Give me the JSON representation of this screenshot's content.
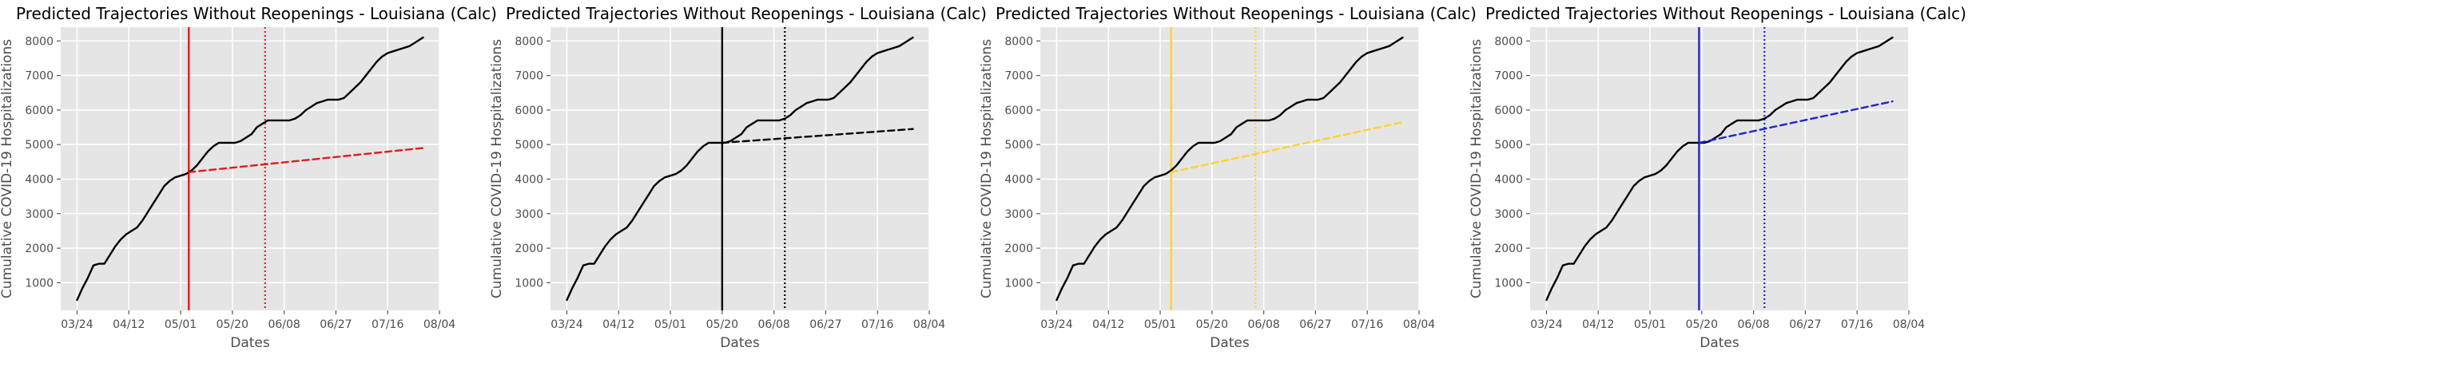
{
  "chart_data": [
    {
      "type": "line",
      "title": "Predicted Trajectories Without Reopenings - Louisiana (Calc)",
      "xlabel": "Dates",
      "ylabel": "Cumulative COVID-19 Hospitalizations",
      "xticks": [
        "03/24",
        "04/12",
        "05/01",
        "05/20",
        "06/08",
        "06/27",
        "07/16",
        "08/04"
      ],
      "yticks": [
        1000,
        2000,
        3000,
        4000,
        5000,
        6000,
        7000,
        8000
      ],
      "xlim": [
        "2020-03-18",
        "2020-08-04"
      ],
      "ylim": [
        200,
        8400
      ],
      "grid": true,
      "accent_color": "#e41a1c",
      "reopen_date": "2020-05-04",
      "dotted_line_date": "2020-06-01",
      "series": [
        {
          "line_style": "solid",
          "color": "#000000",
          "x": [
            "2020-03-24",
            "2020-03-26",
            "2020-03-28",
            "2020-03-30",
            "2020-04-01",
            "2020-04-03",
            "2020-04-05",
            "2020-04-07",
            "2020-04-09",
            "2020-04-11",
            "2020-04-13",
            "2020-04-15",
            "2020-04-17",
            "2020-04-19",
            "2020-04-21",
            "2020-04-23",
            "2020-04-25",
            "2020-04-27",
            "2020-04-29",
            "2020-05-01",
            "2020-05-03",
            "2020-05-05",
            "2020-05-07",
            "2020-05-09",
            "2020-05-11",
            "2020-05-13",
            "2020-05-15",
            "2020-05-17",
            "2020-05-19",
            "2020-05-21",
            "2020-05-23",
            "2020-05-25",
            "2020-05-27",
            "2020-05-29",
            "2020-05-31",
            "2020-06-02",
            "2020-06-04",
            "2020-06-06",
            "2020-06-08",
            "2020-06-10",
            "2020-06-12",
            "2020-06-14",
            "2020-06-16",
            "2020-06-18",
            "2020-06-20",
            "2020-06-22",
            "2020-06-24",
            "2020-06-26",
            "2020-06-28",
            "2020-06-30",
            "2020-07-02",
            "2020-07-04",
            "2020-07-06",
            "2020-07-08",
            "2020-07-10",
            "2020-07-12",
            "2020-07-14",
            "2020-07-16",
            "2020-07-18",
            "2020-07-20",
            "2020-07-22",
            "2020-07-24",
            "2020-07-26",
            "2020-07-28",
            "2020-07-29"
          ],
          "y": [
            500,
            850,
            1150,
            1500,
            1550,
            1550,
            1800,
            2050,
            2250,
            2400,
            2500,
            2600,
            2800,
            3050,
            3300,
            3550,
            3800,
            3950,
            4050,
            4100,
            4150,
            4250,
            4400,
            4600,
            4800,
            4950,
            5050,
            5050,
            5050,
            5050,
            5100,
            5200,
            5300,
            5500,
            5600,
            5700,
            5700,
            5700,
            5700,
            5700,
            5750,
            5850,
            6000,
            6100,
            6200,
            6250,
            6300,
            6300,
            6300,
            6350,
            6500,
            6650,
            6800,
            7000,
            7200,
            7400,
            7550,
            7650,
            7700,
            7750,
            7800,
            7850,
            7950,
            8050,
            8100
          ]
        },
        {
          "line_style": "dashed",
          "color": "#e41a1c",
          "x": [
            "2020-05-04",
            "2020-07-29"
          ],
          "y": [
            4200,
            4900
          ]
        }
      ]
    },
    {
      "type": "line",
      "title": "Predicted Trajectories Without Reopenings - Louisiana (Calc)",
      "xlabel": "Dates",
      "ylabel": "Cumulative COVID-19 Hospitalizations",
      "xticks": [
        "03/24",
        "04/12",
        "05/01",
        "05/20",
        "06/08",
        "06/27",
        "07/16",
        "08/04"
      ],
      "yticks": [
        1000,
        2000,
        3000,
        4000,
        5000,
        6000,
        7000,
        8000
      ],
      "xlim": [
        "2020-03-18",
        "2020-08-04"
      ],
      "ylim": [
        200,
        8400
      ],
      "grid": true,
      "accent_color": "#000000",
      "reopen_date": "2020-05-20",
      "dotted_line_date": "2020-06-12",
      "series": [
        {
          "line_style": "solid",
          "color": "#000000",
          "x": [
            "2020-03-24",
            "2020-03-26",
            "2020-03-28",
            "2020-03-30",
            "2020-04-01",
            "2020-04-03",
            "2020-04-05",
            "2020-04-07",
            "2020-04-09",
            "2020-04-11",
            "2020-04-13",
            "2020-04-15",
            "2020-04-17",
            "2020-04-19",
            "2020-04-21",
            "2020-04-23",
            "2020-04-25",
            "2020-04-27",
            "2020-04-29",
            "2020-05-01",
            "2020-05-03",
            "2020-05-05",
            "2020-05-07",
            "2020-05-09",
            "2020-05-11",
            "2020-05-13",
            "2020-05-15",
            "2020-05-17",
            "2020-05-19",
            "2020-05-21",
            "2020-05-23",
            "2020-05-25",
            "2020-05-27",
            "2020-05-29",
            "2020-05-31",
            "2020-06-02",
            "2020-06-04",
            "2020-06-06",
            "2020-06-08",
            "2020-06-10",
            "2020-06-12",
            "2020-06-14",
            "2020-06-16",
            "2020-06-18",
            "2020-06-20",
            "2020-06-22",
            "2020-06-24",
            "2020-06-26",
            "2020-06-28",
            "2020-06-30",
            "2020-07-02",
            "2020-07-04",
            "2020-07-06",
            "2020-07-08",
            "2020-07-10",
            "2020-07-12",
            "2020-07-14",
            "2020-07-16",
            "2020-07-18",
            "2020-07-20",
            "2020-07-22",
            "2020-07-24",
            "2020-07-26",
            "2020-07-28",
            "2020-07-29"
          ],
          "y": [
            500,
            850,
            1150,
            1500,
            1550,
            1550,
            1800,
            2050,
            2250,
            2400,
            2500,
            2600,
            2800,
            3050,
            3300,
            3550,
            3800,
            3950,
            4050,
            4100,
            4150,
            4250,
            4400,
            4600,
            4800,
            4950,
            5050,
            5050,
            5050,
            5050,
            5100,
            5200,
            5300,
            5500,
            5600,
            5700,
            5700,
            5700,
            5700,
            5700,
            5750,
            5850,
            6000,
            6100,
            6200,
            6250,
            6300,
            6300,
            6300,
            6350,
            6500,
            6650,
            6800,
            7000,
            7200,
            7400,
            7550,
            7650,
            7700,
            7750,
            7800,
            7850,
            7950,
            8050,
            8100
          ]
        },
        {
          "line_style": "dashed",
          "color": "#000000",
          "x": [
            "2020-05-20",
            "2020-07-29"
          ],
          "y": [
            5050,
            5450
          ]
        }
      ]
    },
    {
      "type": "line",
      "title": "Predicted Trajectories Without Reopenings - Louisiana (Calc)",
      "xlabel": "Dates",
      "ylabel": "Cumulative COVID-19 Hospitalizations",
      "xticks": [
        "03/24",
        "04/12",
        "05/01",
        "05/20",
        "06/08",
        "06/27",
        "07/16",
        "08/04"
      ],
      "yticks": [
        1000,
        2000,
        3000,
        4000,
        5000,
        6000,
        7000,
        8000
      ],
      "xlim": [
        "2020-03-18",
        "2020-08-04"
      ],
      "ylim": [
        200,
        8400
      ],
      "grid": true,
      "accent_color": "#ffd22e",
      "reopen_date": "2020-05-05",
      "dotted_line_date": "2020-06-05",
      "series": [
        {
          "line_style": "solid",
          "color": "#000000",
          "x": [
            "2020-03-24",
            "2020-03-26",
            "2020-03-28",
            "2020-03-30",
            "2020-04-01",
            "2020-04-03",
            "2020-04-05",
            "2020-04-07",
            "2020-04-09",
            "2020-04-11",
            "2020-04-13",
            "2020-04-15",
            "2020-04-17",
            "2020-04-19",
            "2020-04-21",
            "2020-04-23",
            "2020-04-25",
            "2020-04-27",
            "2020-04-29",
            "2020-05-01",
            "2020-05-03",
            "2020-05-05",
            "2020-05-07",
            "2020-05-09",
            "2020-05-11",
            "2020-05-13",
            "2020-05-15",
            "2020-05-17",
            "2020-05-19",
            "2020-05-21",
            "2020-05-23",
            "2020-05-25",
            "2020-05-27",
            "2020-05-29",
            "2020-05-31",
            "2020-06-02",
            "2020-06-04",
            "2020-06-06",
            "2020-06-08",
            "2020-06-10",
            "2020-06-12",
            "2020-06-14",
            "2020-06-16",
            "2020-06-18",
            "2020-06-20",
            "2020-06-22",
            "2020-06-24",
            "2020-06-26",
            "2020-06-28",
            "2020-06-30",
            "2020-07-02",
            "2020-07-04",
            "2020-07-06",
            "2020-07-08",
            "2020-07-10",
            "2020-07-12",
            "2020-07-14",
            "2020-07-16",
            "2020-07-18",
            "2020-07-20",
            "2020-07-22",
            "2020-07-24",
            "2020-07-26",
            "2020-07-28",
            "2020-07-29"
          ],
          "y": [
            500,
            850,
            1150,
            1500,
            1550,
            1550,
            1800,
            2050,
            2250,
            2400,
            2500,
            2600,
            2800,
            3050,
            3300,
            3550,
            3800,
            3950,
            4050,
            4100,
            4150,
            4250,
            4400,
            4600,
            4800,
            4950,
            5050,
            5050,
            5050,
            5050,
            5100,
            5200,
            5300,
            5500,
            5600,
            5700,
            5700,
            5700,
            5700,
            5700,
            5750,
            5850,
            6000,
            6100,
            6200,
            6250,
            6300,
            6300,
            6300,
            6350,
            6500,
            6650,
            6800,
            7000,
            7200,
            7400,
            7550,
            7650,
            7700,
            7750,
            7800,
            7850,
            7950,
            8050,
            8100
          ]
        },
        {
          "line_style": "dashed",
          "color": "#ffd22e",
          "x": [
            "2020-05-05",
            "2020-07-29"
          ],
          "y": [
            4200,
            5650
          ]
        }
      ]
    },
    {
      "type": "line",
      "title": "Predicted Trajectories Without Reopenings - Louisiana (Calc)",
      "xlabel": "Dates",
      "ylabel": "Cumulative COVID-19 Hospitalizations",
      "xticks": [
        "03/24",
        "04/12",
        "05/01",
        "05/20",
        "06/08",
        "06/27",
        "07/16",
        "08/04"
      ],
      "yticks": [
        1000,
        2000,
        3000,
        4000,
        5000,
        6000,
        7000,
        8000
      ],
      "xlim": [
        "2020-03-18",
        "2020-08-04"
      ],
      "ylim": [
        200,
        8400
      ],
      "grid": true,
      "accent_color": "#1f24cc",
      "reopen_date": "2020-05-19",
      "dotted_line_date": "2020-06-12",
      "series": [
        {
          "line_style": "solid",
          "color": "#000000",
          "x": [
            "2020-03-24",
            "2020-03-26",
            "2020-03-28",
            "2020-03-30",
            "2020-04-01",
            "2020-04-03",
            "2020-04-05",
            "2020-04-07",
            "2020-04-09",
            "2020-04-11",
            "2020-04-13",
            "2020-04-15",
            "2020-04-17",
            "2020-04-19",
            "2020-04-21",
            "2020-04-23",
            "2020-04-25",
            "2020-04-27",
            "2020-04-29",
            "2020-05-01",
            "2020-05-03",
            "2020-05-05",
            "2020-05-07",
            "2020-05-09",
            "2020-05-11",
            "2020-05-13",
            "2020-05-15",
            "2020-05-17",
            "2020-05-19",
            "2020-05-21",
            "2020-05-23",
            "2020-05-25",
            "2020-05-27",
            "2020-05-29",
            "2020-05-31",
            "2020-06-02",
            "2020-06-04",
            "2020-06-06",
            "2020-06-08",
            "2020-06-10",
            "2020-06-12",
            "2020-06-14",
            "2020-06-16",
            "2020-06-18",
            "2020-06-20",
            "2020-06-22",
            "2020-06-24",
            "2020-06-26",
            "2020-06-28",
            "2020-06-30",
            "2020-07-02",
            "2020-07-04",
            "2020-07-06",
            "2020-07-08",
            "2020-07-10",
            "2020-07-12",
            "2020-07-14",
            "2020-07-16",
            "2020-07-18",
            "2020-07-20",
            "2020-07-22",
            "2020-07-24",
            "2020-07-26",
            "2020-07-28",
            "2020-07-29"
          ],
          "y": [
            500,
            850,
            1150,
            1500,
            1550,
            1550,
            1800,
            2050,
            2250,
            2400,
            2500,
            2600,
            2800,
            3050,
            3300,
            3550,
            3800,
            3950,
            4050,
            4100,
            4150,
            4250,
            4400,
            4600,
            4800,
            4950,
            5050,
            5050,
            5050,
            5050,
            5100,
            5200,
            5300,
            5500,
            5600,
            5700,
            5700,
            5700,
            5700,
            5700,
            5750,
            5850,
            6000,
            6100,
            6200,
            6250,
            6300,
            6300,
            6300,
            6350,
            6500,
            6650,
            6800,
            7000,
            7200,
            7400,
            7550,
            7650,
            7700,
            7750,
            7800,
            7850,
            7950,
            8050,
            8100
          ]
        },
        {
          "line_style": "dashed",
          "color": "#1f24cc",
          "x": [
            "2020-05-19",
            "2020-07-29"
          ],
          "y": [
            5050,
            6250
          ]
        }
      ]
    }
  ]
}
